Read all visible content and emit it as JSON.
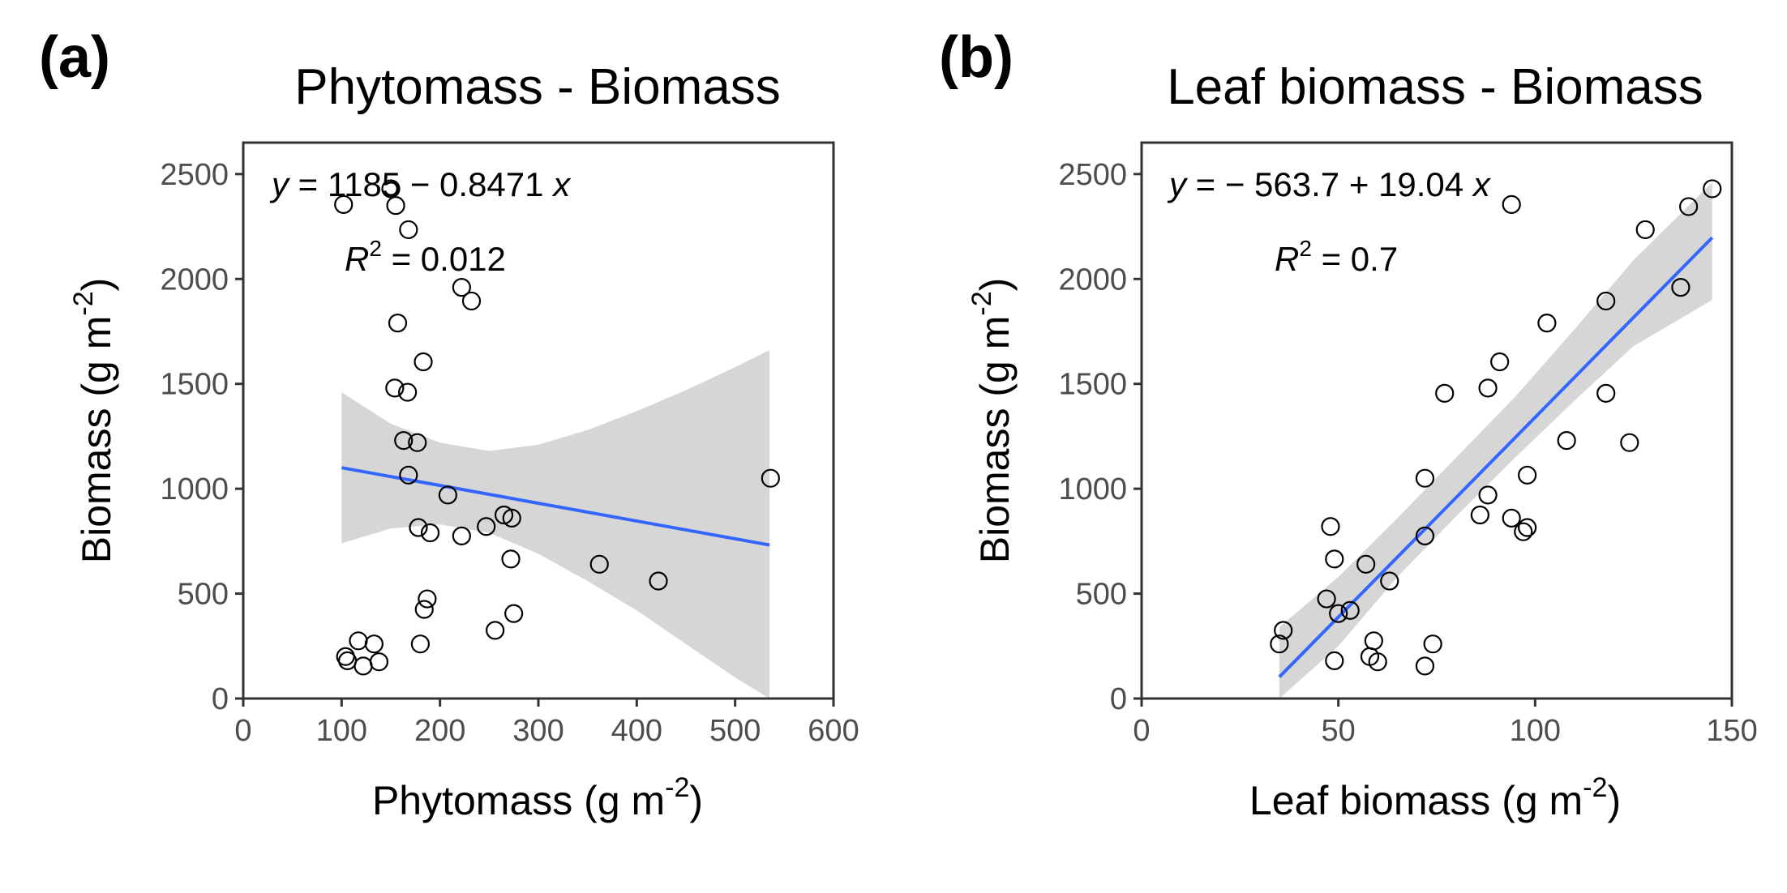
{
  "chart_data": [
    {
      "type": "scatter",
      "panel_label": "(a)",
      "title": "Phytomass - Biomass",
      "xlabel": "Phytomass",
      "xunit_base": "(g m",
      "ylabel": "Biomass",
      "yunit_base": "(g m",
      "unit_exp": "-2",
      "unit_close": ")",
      "xlim": [
        0,
        600
      ],
      "ylim": [
        0,
        2650
      ],
      "xticks": [
        0,
        100,
        200,
        300,
        400,
        500,
        600
      ],
      "yticks": [
        0,
        500,
        1000,
        1500,
        2000,
        2500
      ],
      "equation": {
        "y": "y",
        "rhs": " = 1185 − 0.8471 ",
        "x": "x"
      },
      "r2": {
        "r": "R",
        "exp": "2",
        "value": " = 0.012"
      },
      "fit": {
        "intercept": 1185,
        "slope": -0.8471,
        "x_range": [
          100,
          535
        ]
      },
      "ci_band": [
        {
          "x": 100,
          "lo": 740,
          "hi": 1460
        },
        {
          "x": 150,
          "lo": 810,
          "hi": 1310
        },
        {
          "x": 200,
          "lo": 830,
          "hi": 1220
        },
        {
          "x": 250,
          "lo": 790,
          "hi": 1180
        },
        {
          "x": 300,
          "lo": 690,
          "hi": 1210
        },
        {
          "x": 350,
          "lo": 560,
          "hi": 1280
        },
        {
          "x": 400,
          "lo": 420,
          "hi": 1370
        },
        {
          "x": 450,
          "lo": 260,
          "hi": 1470
        },
        {
          "x": 500,
          "lo": 100,
          "hi": 1580
        },
        {
          "x": 535,
          "lo": -20,
          "hi": 1660
        }
      ],
      "points": [
        {
          "x": 102,
          "y": 2355
        },
        {
          "x": 150,
          "y": 2430
        },
        {
          "x": 155,
          "y": 2350
        },
        {
          "x": 168,
          "y": 2235
        },
        {
          "x": 222,
          "y": 1960
        },
        {
          "x": 232,
          "y": 1895
        },
        {
          "x": 157,
          "y": 1790
        },
        {
          "x": 183,
          "y": 1605
        },
        {
          "x": 154,
          "y": 1480
        },
        {
          "x": 167,
          "y": 1460
        },
        {
          "x": 163,
          "y": 1230
        },
        {
          "x": 177,
          "y": 1220
        },
        {
          "x": 168,
          "y": 1065
        },
        {
          "x": 208,
          "y": 970
        },
        {
          "x": 536,
          "y": 1050
        },
        {
          "x": 265,
          "y": 875
        },
        {
          "x": 273,
          "y": 860
        },
        {
          "x": 247,
          "y": 820
        },
        {
          "x": 178,
          "y": 815
        },
        {
          "x": 190,
          "y": 790
        },
        {
          "x": 222,
          "y": 775
        },
        {
          "x": 272,
          "y": 665
        },
        {
          "x": 362,
          "y": 640
        },
        {
          "x": 422,
          "y": 560
        },
        {
          "x": 187,
          "y": 475
        },
        {
          "x": 184,
          "y": 425
        },
        {
          "x": 275,
          "y": 405
        },
        {
          "x": 256,
          "y": 325
        },
        {
          "x": 117,
          "y": 275
        },
        {
          "x": 133,
          "y": 260
        },
        {
          "x": 180,
          "y": 260
        },
        {
          "x": 104,
          "y": 200
        },
        {
          "x": 106,
          "y": 180
        },
        {
          "x": 138,
          "y": 175
        },
        {
          "x": 122,
          "y": 155
        }
      ]
    },
    {
      "type": "scatter",
      "panel_label": "(b)",
      "title": "Leaf biomass - Biomass",
      "xlabel": "Leaf biomass",
      "xunit_base": "(g m",
      "ylabel": "Biomass",
      "yunit_base": "(g m",
      "unit_exp": "-2",
      "unit_close": ")",
      "xlim": [
        0,
        150
      ],
      "ylim": [
        0,
        2650
      ],
      "xticks": [
        0,
        50,
        100,
        150
      ],
      "yticks": [
        0,
        500,
        1000,
        1500,
        2000,
        2500
      ],
      "equation": {
        "y": "y",
        "rhs": " = − 563.7 + 19.04 ",
        "x": "x"
      },
      "r2": {
        "r": "R",
        "exp": "2",
        "value": " = 0.7"
      },
      "fit": {
        "intercept": -563.7,
        "slope": 19.04,
        "x_range": [
          35,
          145
        ]
      },
      "ci_band": [
        {
          "x": 35,
          "lo": -150,
          "hi": 340
        },
        {
          "x": 50,
          "lo": 250,
          "hi": 580
        },
        {
          "x": 65,
          "lo": 580,
          "hi": 860
        },
        {
          "x": 80,
          "lo": 870,
          "hi": 1150
        },
        {
          "x": 95,
          "lo": 1150,
          "hi": 1440
        },
        {
          "x": 110,
          "lo": 1420,
          "hi": 1760
        },
        {
          "x": 125,
          "lo": 1680,
          "hi": 2090
        },
        {
          "x": 145,
          "lo": 1900,
          "hi": 2460
        }
      ],
      "points": [
        {
          "x": 145,
          "y": 2430
        },
        {
          "x": 139,
          "y": 2345
        },
        {
          "x": 94,
          "y": 2355
        },
        {
          "x": 128,
          "y": 2235
        },
        {
          "x": 137,
          "y": 1960
        },
        {
          "x": 118,
          "y": 1895
        },
        {
          "x": 103,
          "y": 1790
        },
        {
          "x": 91,
          "y": 1605
        },
        {
          "x": 88,
          "y": 1480
        },
        {
          "x": 77,
          "y": 1455
        },
        {
          "x": 118,
          "y": 1455
        },
        {
          "x": 108,
          "y": 1230
        },
        {
          "x": 124,
          "y": 1220
        },
        {
          "x": 72,
          "y": 1050
        },
        {
          "x": 98,
          "y": 1065
        },
        {
          "x": 88,
          "y": 970
        },
        {
          "x": 86,
          "y": 875
        },
        {
          "x": 94,
          "y": 860
        },
        {
          "x": 98,
          "y": 815
        },
        {
          "x": 97,
          "y": 795
        },
        {
          "x": 48,
          "y": 820
        },
        {
          "x": 72,
          "y": 775
        },
        {
          "x": 49,
          "y": 665
        },
        {
          "x": 57,
          "y": 640
        },
        {
          "x": 63,
          "y": 560
        },
        {
          "x": 47,
          "y": 475
        },
        {
          "x": 53,
          "y": 420
        },
        {
          "x": 50,
          "y": 405
        },
        {
          "x": 36,
          "y": 325
        },
        {
          "x": 35,
          "y": 260
        },
        {
          "x": 59,
          "y": 275
        },
        {
          "x": 74,
          "y": 260
        },
        {
          "x": 58,
          "y": 200
        },
        {
          "x": 49,
          "y": 180
        },
        {
          "x": 60,
          "y": 175
        },
        {
          "x": 72,
          "y": 155
        }
      ]
    }
  ]
}
